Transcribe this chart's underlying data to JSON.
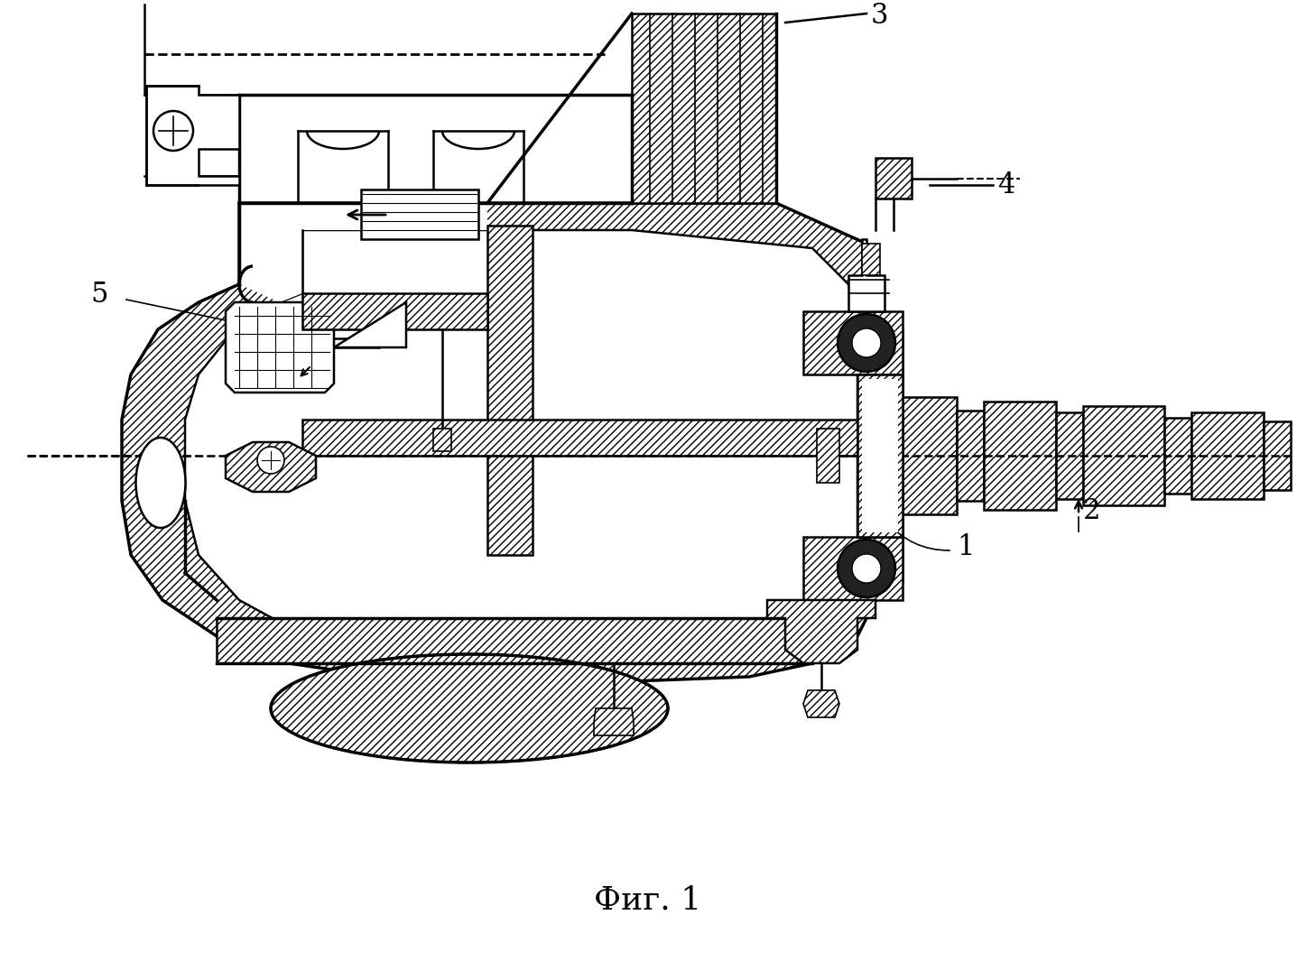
{
  "title": "Фиг. 1",
  "title_fontsize": 26,
  "background_color": "#ffffff",
  "label_1": "1",
  "label_2": "2",
  "label_3": "3",
  "label_4": "4",
  "label_5": "5",
  "label_fontsize": 22,
  "fig_width": 14.37,
  "fig_height": 10.65,
  "dpi": 100
}
